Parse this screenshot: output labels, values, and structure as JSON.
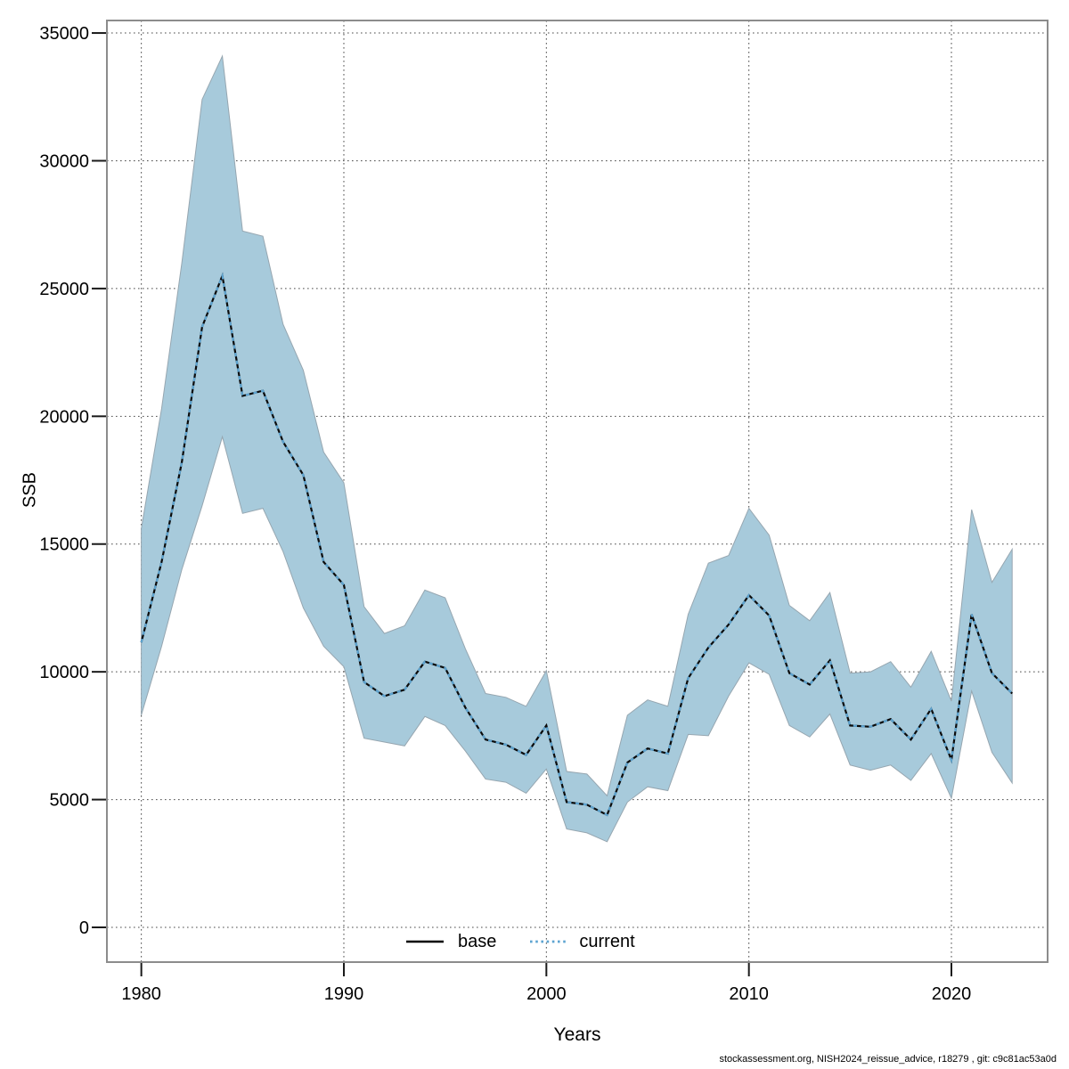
{
  "chart_data": {
    "type": "line",
    "title": "",
    "xlabel": "Years",
    "ylabel": "SSB",
    "x_ticks": [
      1980,
      1990,
      2000,
      2010,
      2020
    ],
    "y_ticks": [
      0,
      5000,
      10000,
      15000,
      20000,
      25000,
      30000,
      35000
    ],
    "x_range": [
      1978.3,
      2024.75
    ],
    "y_range": [
      -1360,
      35490
    ],
    "grid": "dotted",
    "legend_position": "bottom-center",
    "legend": [
      {
        "label": "base",
        "style": "solid",
        "color": "#000000"
      },
      {
        "label": "current",
        "style": "dotted",
        "color": "#5da4d1"
      }
    ],
    "band_color": "#a7cadb",
    "years": [
      1980,
      1981,
      1982,
      1983,
      1984,
      1985,
      1986,
      1987,
      1988,
      1989,
      1990,
      1991,
      1992,
      1993,
      1994,
      1995,
      1996,
      1997,
      1998,
      1999,
      2000,
      2001,
      2002,
      2003,
      2004,
      2005,
      2006,
      2007,
      2008,
      2009,
      2010,
      2011,
      2012,
      2013,
      2014,
      2015,
      2016,
      2017,
      2018,
      2019,
      2020,
      2021,
      2022,
      2023
    ],
    "series": [
      {
        "name": "base",
        "values": [
          11150,
          14300,
          18200,
          23500,
          25500,
          20800,
          21000,
          19000,
          17700,
          14300,
          13400,
          9600,
          9050,
          9300,
          10400,
          10150,
          8600,
          7350,
          7150,
          6750,
          7900,
          4900,
          4800,
          4400,
          6450,
          7000,
          6800,
          9750,
          10950,
          11850,
          13000,
          12200,
          9950,
          9500,
          10450,
          7900,
          7850,
          8150,
          7350,
          8550,
          6550,
          12250,
          9950,
          9150
        ]
      },
      {
        "name": "current",
        "values": [
          11150,
          14300,
          18200,
          23500,
          25500,
          20800,
          21000,
          19000,
          17700,
          14300,
          13400,
          9600,
          9050,
          9300,
          10400,
          10150,
          8600,
          7350,
          7150,
          6750,
          7900,
          4900,
          4800,
          4400,
          6450,
          7000,
          6800,
          9750,
          10950,
          11850,
          13000,
          12200,
          9950,
          9500,
          10450,
          7900,
          7850,
          8150,
          7350,
          8550,
          6550,
          12250,
          9950,
          9150
        ]
      }
    ],
    "band": {
      "lower": [
        8300,
        11000,
        14000,
        16500,
        19200,
        16200,
        16400,
        14700,
        12500,
        11000,
        10200,
        7400,
        7250,
        7100,
        8250,
        7900,
        6900,
        5800,
        5680,
        5250,
        6200,
        3850,
        3700,
        3350,
        4900,
        5500,
        5350,
        7550,
        7500,
        9050,
        10350,
        9900,
        7900,
        7450,
        8350,
        6350,
        6150,
        6350,
        5750,
        6800,
        5050,
        9250,
        6850,
        5650
      ],
      "upper": [
        15600,
        20300,
        26000,
        32400,
        34100,
        27250,
        27050,
        23600,
        21800,
        18600,
        17400,
        12550,
        11500,
        11800,
        13200,
        12900,
        10900,
        9150,
        9000,
        8650,
        10050,
        6100,
        6000,
        5150,
        8300,
        8900,
        8650,
        12250,
        14250,
        14550,
        16400,
        15350,
        12600,
        12000,
        13100,
        9950,
        10000,
        10400,
        9400,
        10800,
        8850,
        16350,
        13500,
        14800
      ]
    }
  },
  "footer": {
    "credit": "stockassessment.org, NISH2024_reissue_advice, r18279 , git: c9c81ac53a0d"
  }
}
